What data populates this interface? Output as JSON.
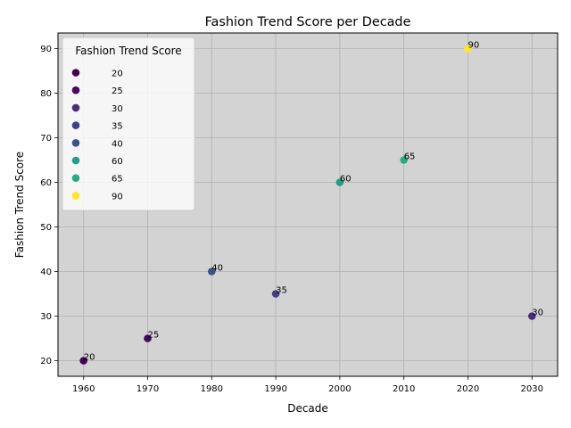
{
  "chart_data": {
    "type": "scatter",
    "title": "Fashion Trend Score per Decade",
    "xlabel": "Decade",
    "ylabel": "Fashion Trend Score",
    "xlim": [
      1956,
      2034
    ],
    "ylim": [
      16.5,
      93.5
    ],
    "x_ticks": [
      "1960",
      "1970",
      "1980",
      "1990",
      "2000",
      "2010",
      "2020",
      "2030"
    ],
    "y_ticks": [
      "20",
      "30",
      "40",
      "50",
      "60",
      "70",
      "80",
      "90"
    ],
    "grid": true,
    "plot_background": "#d3d3d3",
    "colormap": "viridis",
    "points": [
      {
        "x": 1960,
        "y": 20,
        "label": "20",
        "color": "#440154"
      },
      {
        "x": 1970,
        "y": 25,
        "label": "25",
        "color": "#46085c"
      },
      {
        "x": 1980,
        "y": 40,
        "label": "40",
        "color": "#3b528b"
      },
      {
        "x": 1990,
        "y": 35,
        "label": "35",
        "color": "#433e85"
      },
      {
        "x": 2000,
        "y": 60,
        "label": "60",
        "color": "#1f9e89"
      },
      {
        "x": 2010,
        "y": 65,
        "label": "65",
        "color": "#26ad81"
      },
      {
        "x": 2020,
        "y": 90,
        "label": "90",
        "color": "#fde725"
      },
      {
        "x": 2030,
        "y": 30,
        "label": "30",
        "color": "#472d7b"
      }
    ],
    "legend": {
      "title": "Fashion Trend Score",
      "placement": "upper-left",
      "entries": [
        {
          "label": "20",
          "color": "#440154"
        },
        {
          "label": "25",
          "color": "#46085c"
        },
        {
          "label": "30",
          "color": "#472d7b"
        },
        {
          "label": "35",
          "color": "#433e85"
        },
        {
          "label": "40",
          "color": "#3b528b"
        },
        {
          "label": "60",
          "color": "#1f9e89"
        },
        {
          "label": "65",
          "color": "#26ad81"
        },
        {
          "label": "90",
          "color": "#fde725"
        }
      ]
    }
  }
}
